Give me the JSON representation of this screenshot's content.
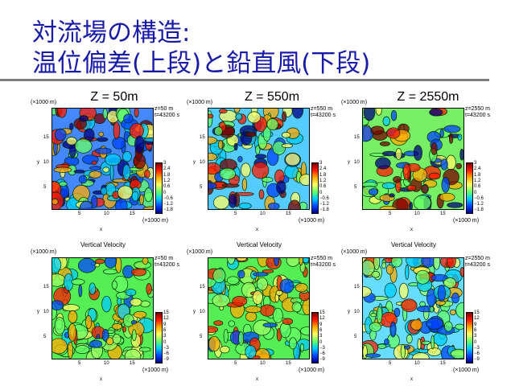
{
  "title": {
    "line1": "対流場の構造:",
    "line2": "温位偏差(上段)と鉛直風(下段)"
  },
  "columns": [
    "Z = 50m",
    "Z = 550m",
    "Z = 2550m"
  ],
  "axis": {
    "scale": "(×1000 m)",
    "x_label": "x",
    "y_label": "y",
    "x_ticks": [
      "5",
      "10",
      "15"
    ],
    "y_ticks": [
      "15",
      "10",
      "5"
    ]
  },
  "panel_info": [
    {
      "z": "z=50 m",
      "t": "t=43200 s"
    },
    {
      "z": "z=550 m",
      "t": "t=43200 s"
    },
    {
      "z": "z=2550 m",
      "t": "t=43200 s"
    }
  ],
  "bottom_row_title": "Vertical Velocity",
  "colorbar_top": [
    "3",
    "2.4",
    "1.8",
    "1.2",
    "0.6",
    "0",
    "−0.6",
    "−1.2",
    "−1.8"
  ],
  "colorbar_bottom": [
    "15",
    "12",
    "9",
    "6",
    "3",
    "0",
    "−3",
    "−6",
    "−9"
  ],
  "colors": {
    "title": "#1a1aa8",
    "rule": "#7f7f7f"
  }
}
